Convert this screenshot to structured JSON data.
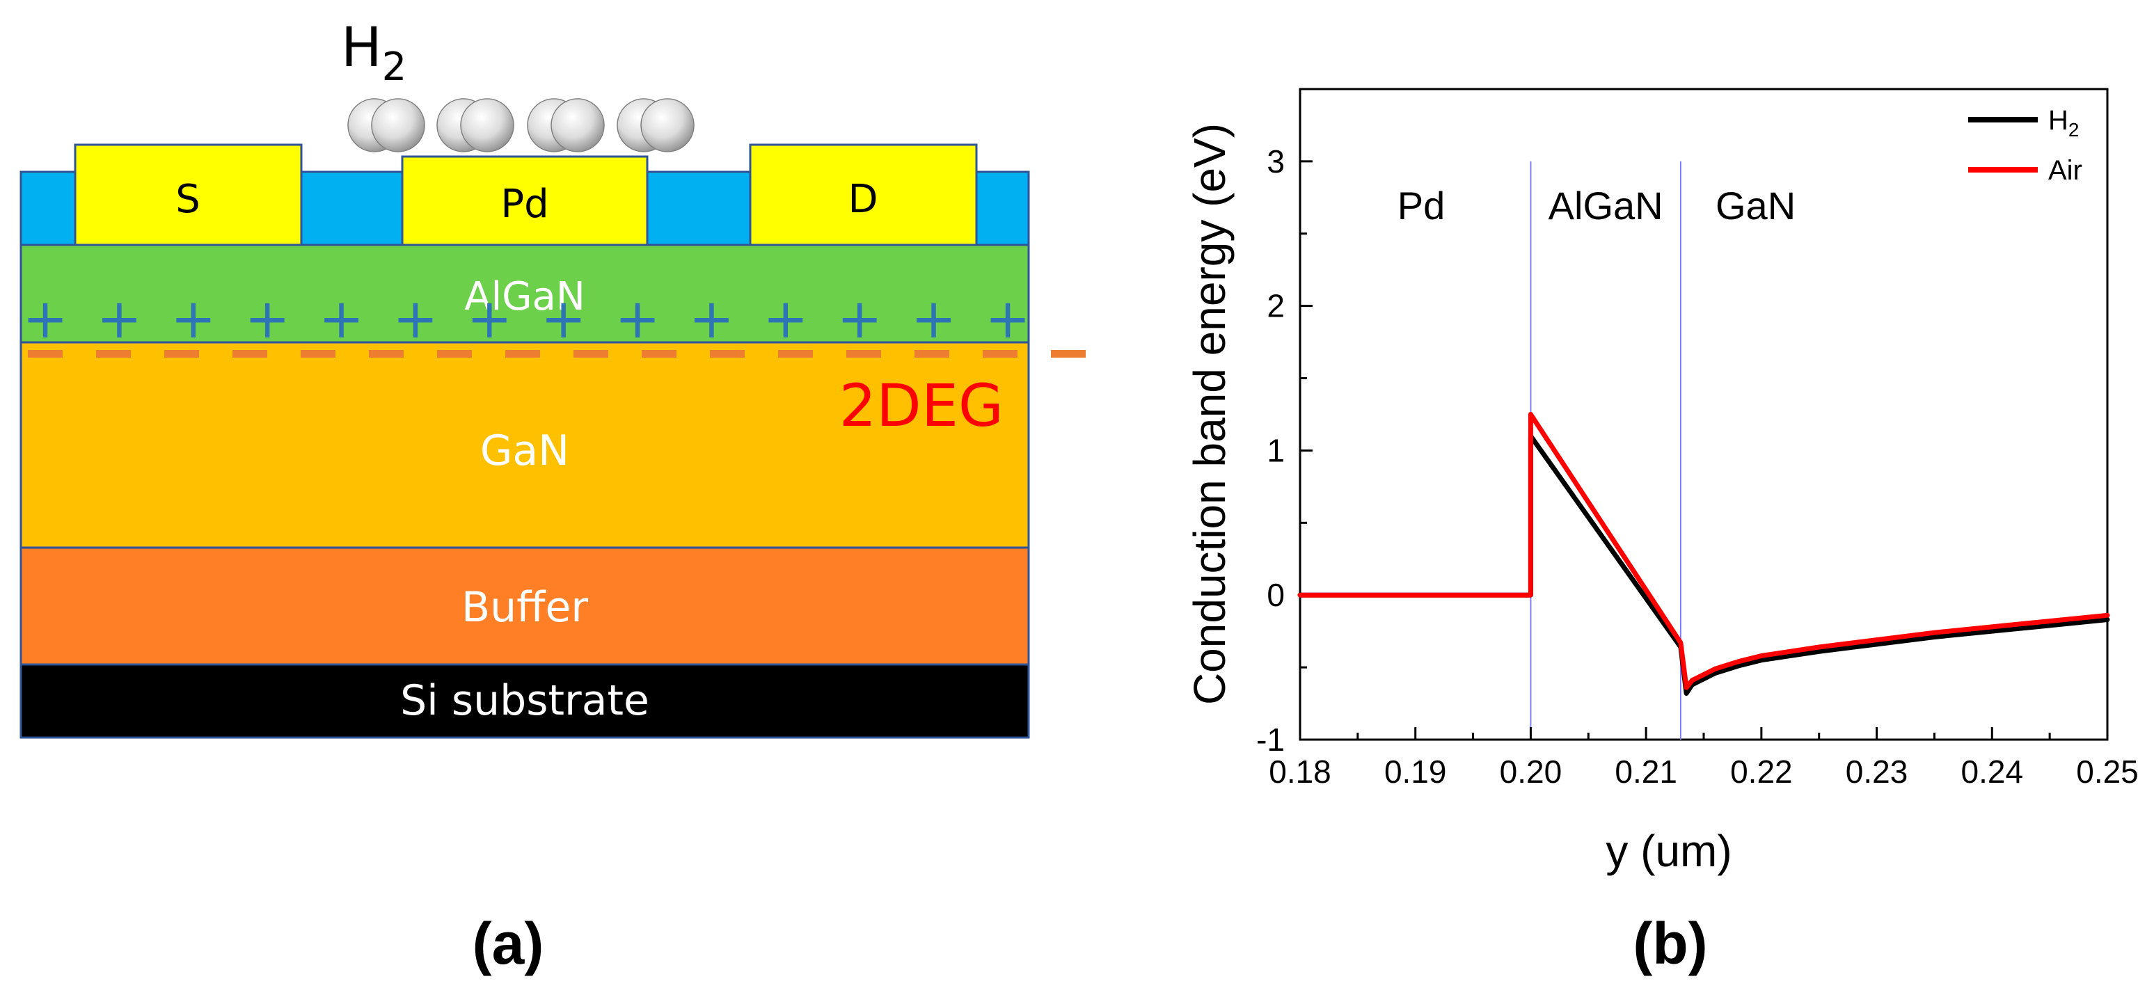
{
  "panel_a": {
    "caption": "(a)",
    "gas_label": "H",
    "gas_subscript": "2",
    "molecule_count": 4,
    "contacts": {
      "source": "S",
      "gate": "Pd",
      "drain": "D"
    },
    "layers": {
      "algan": "AlGaN",
      "gan": "GaN",
      "buffer": "Buffer",
      "substrate": "Si substrate"
    },
    "charge_symbol": "+",
    "charge_count": 14,
    "channel_label": "2DEG",
    "colors": {
      "passivation": "#00B0F0",
      "contact": "#FFFF00",
      "algan": "#6CD04A",
      "gan": "#FFC000",
      "buffer": "#FF7F27",
      "substrate": "#000000",
      "charge_plus": "#2E75B6",
      "charge_minus": "#ED7D31",
      "channel_label": "#FF0000"
    }
  },
  "panel_b": {
    "caption": "(b)"
  },
  "chart_data": {
    "type": "line",
    "title": "",
    "xlabel": "y (um)",
    "ylabel": "Conduction band energy (eV)",
    "xlim": [
      0.18,
      0.25
    ],
    "ylim": [
      -1,
      3.5
    ],
    "xticks": [
      0.18,
      0.19,
      0.2,
      0.21,
      0.22,
      0.23,
      0.24,
      0.25
    ],
    "xtick_labels": [
      "0.18",
      "0.19",
      "0.20",
      "0.21",
      "0.22",
      "0.23",
      "0.24",
      "0.25"
    ],
    "yticks": [
      -1,
      0,
      1,
      2,
      3
    ],
    "ytick_labels": [
      "-1",
      "0",
      "1",
      "2",
      "3"
    ],
    "region_boundaries": [
      0.2,
      0.213
    ],
    "region_labels": [
      {
        "text": "Pd",
        "x": 0.1905,
        "y": 2.6
      },
      {
        "text": "AlGaN",
        "x": 0.2065,
        "y": 2.6
      },
      {
        "text": "GaN",
        "x": 0.2195,
        "y": 2.6
      }
    ],
    "legend": {
      "position": "top-right",
      "entries": [
        {
          "name": "H",
          "subscript": "2",
          "color": "#000000"
        },
        {
          "name": "Air",
          "color": "#FF0000"
        }
      ]
    },
    "series": [
      {
        "name": "H2",
        "color": "#000000",
        "x": [
          0.18,
          0.2,
          0.2,
          0.213,
          0.2135,
          0.214,
          0.216,
          0.218,
          0.22,
          0.225,
          0.23,
          0.235,
          0.24,
          0.245,
          0.25
        ],
        "y": [
          0,
          0,
          1.1,
          -0.36,
          -0.68,
          -0.62,
          -0.54,
          -0.49,
          -0.45,
          -0.39,
          -0.34,
          -0.29,
          -0.25,
          -0.21,
          -0.17
        ]
      },
      {
        "name": "Air",
        "color": "#FF0000",
        "x": [
          0.18,
          0.2,
          0.2,
          0.213,
          0.2135,
          0.214,
          0.216,
          0.218,
          0.22,
          0.225,
          0.23,
          0.235,
          0.24,
          0.245,
          0.25
        ],
        "y": [
          0,
          0,
          1.25,
          -0.33,
          -0.64,
          -0.59,
          -0.51,
          -0.46,
          -0.42,
          -0.36,
          -0.31,
          -0.26,
          -0.22,
          -0.18,
          -0.14
        ]
      }
    ]
  }
}
